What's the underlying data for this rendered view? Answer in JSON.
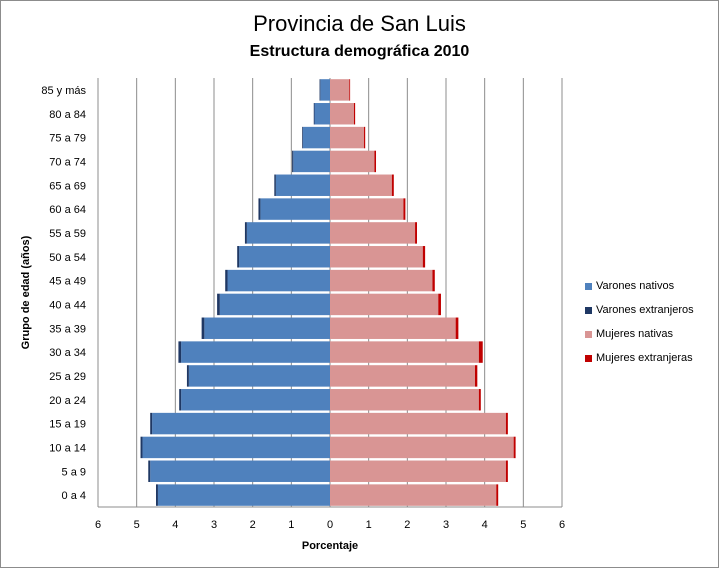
{
  "title": "Provincia de San Luis",
  "subtitle": "Estructura demográfica 2010",
  "colors": {
    "varones_nativos": "#4f81bd",
    "varones_extranjeros": "#1f3864",
    "mujeres_nativas": "#d99594",
    "mujeres_extranjeras": "#c00000",
    "grid": "#8c8c8c"
  },
  "chart_data": {
    "type": "bar",
    "orientation": "horizontal-stacked-population-pyramid",
    "title": "Provincia de San Luis",
    "subtitle": "Estructura demográfica 2010",
    "xlabel": "Porcentaje",
    "ylabel": "Grupo de edad (años)",
    "xlim": [
      -6,
      6
    ],
    "x_ticks": [
      "6",
      "5",
      "4",
      "3",
      "2",
      "1",
      "0",
      "1",
      "2",
      "3",
      "4",
      "5",
      "6"
    ],
    "grid": true,
    "legend_position": "right",
    "categories": [
      "0 a 4",
      "5 a 9",
      "10 a 14",
      "15 a 19",
      "20 a 24",
      "25 a 29",
      "30 a 34",
      "35 a 39",
      "40 a 44",
      "45 a 49",
      "50 a 54",
      "55 a 59",
      "60 a 64",
      "65 a 69",
      "70 a 74",
      "75 a 79",
      "80 a 84",
      "85 y más"
    ],
    "series": [
      {
        "name": "Varones nativos",
        "side": "left",
        "values": [
          4.45,
          4.65,
          4.85,
          4.6,
          3.85,
          3.65,
          3.85,
          3.25,
          2.85,
          2.65,
          2.35,
          2.15,
          1.8,
          1.4,
          0.95,
          0.7,
          0.4,
          0.25
        ]
      },
      {
        "name": "Varones extranjeros",
        "side": "left",
        "values": [
          0.05,
          0.05,
          0.05,
          0.05,
          0.05,
          0.05,
          0.07,
          0.07,
          0.07,
          0.06,
          0.05,
          0.05,
          0.05,
          0.04,
          0.03,
          0.02,
          0.02,
          0.02
        ]
      },
      {
        "name": "Mujeres nativas",
        "side": "right",
        "values": [
          4.3,
          4.55,
          4.75,
          4.55,
          3.85,
          3.75,
          3.85,
          3.25,
          2.8,
          2.65,
          2.4,
          2.2,
          1.9,
          1.6,
          1.15,
          0.88,
          0.62,
          0.5
        ]
      },
      {
        "name": "Mujeres extranjeras",
        "side": "right",
        "values": [
          0.05,
          0.05,
          0.05,
          0.05,
          0.05,
          0.06,
          0.1,
          0.07,
          0.07,
          0.06,
          0.06,
          0.05,
          0.05,
          0.05,
          0.04,
          0.03,
          0.03,
          0.02
        ]
      }
    ]
  }
}
